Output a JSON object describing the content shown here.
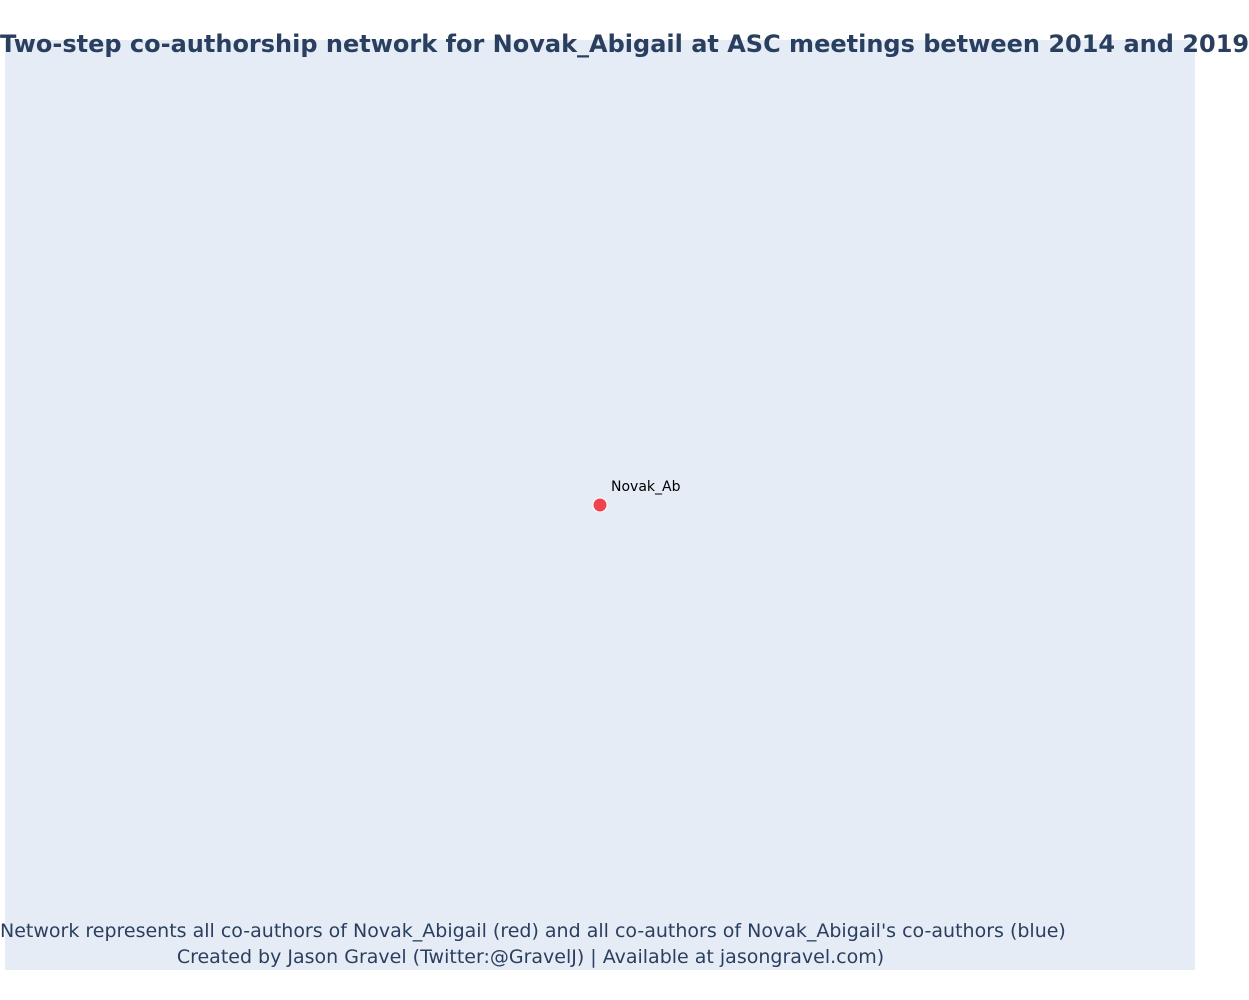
{
  "title": "Two-step co-authorship network for Novak_Abigail at ASC meetings between 2014 and 2019",
  "caption": {
    "line1": "Network represents all co-authors of Novak_Abigail (red) and all co-authors of Novak_Abigail's co-authors (blue)",
    "line2": "Created by Jason Gravel (Twitter:@GravelJ) | Available at jasongravel.com)"
  },
  "colors": {
    "background": "#e5ecf6",
    "focal_node": "#ef434f",
    "coauthor_node": "#636efa",
    "text": "#2a3f5f"
  },
  "network": {
    "nodes": [
      {
        "id": "Novak_Abigail",
        "label": "Novak_Ab",
        "role": "focal",
        "color": "#ef434f"
      }
    ],
    "edges": []
  }
}
